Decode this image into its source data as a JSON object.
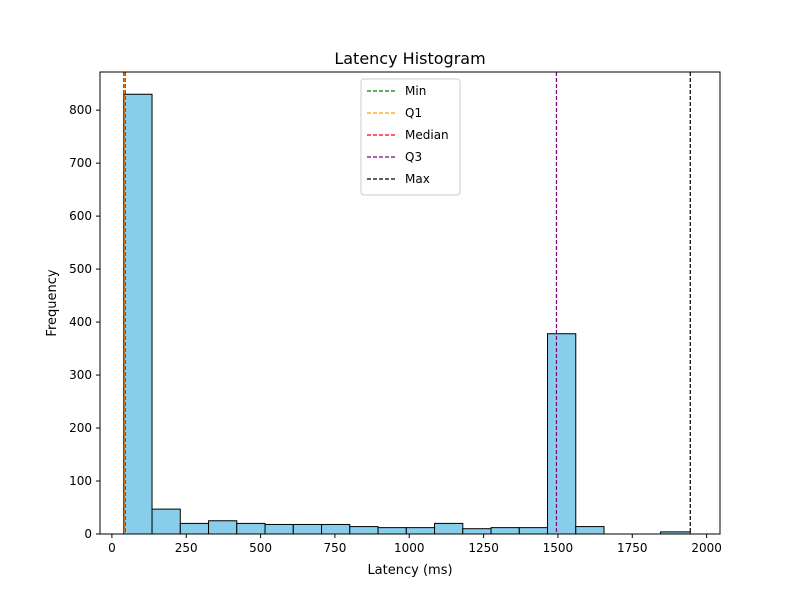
{
  "chart_data": {
    "type": "bar",
    "title": "Latency Histogram",
    "xlabel": "Latency (ms)",
    "ylabel": "Frequency",
    "xlim": [
      -40,
      2045
    ],
    "ylim": [
      0,
      872
    ],
    "xticks": [
      0,
      250,
      500,
      750,
      1000,
      1250,
      1500,
      1750,
      2000
    ],
    "yticks": [
      0,
      100,
      200,
      300,
      400,
      500,
      600,
      700,
      800
    ],
    "bin_edges": [
      40,
      135,
      230,
      325,
      420,
      515,
      610,
      705,
      800,
      895,
      990,
      1085,
      1180,
      1275,
      1370,
      1465,
      1560,
      1655,
      1750,
      1845,
      1945
    ],
    "counts": [
      830,
      47,
      20,
      25,
      20,
      18,
      18,
      18,
      14,
      12,
      12,
      20,
      10,
      12,
      12,
      378,
      14,
      0,
      0,
      4
    ],
    "bar_color": "#87CEEB",
    "edge_color": "#000000",
    "vlines": [
      {
        "name": "Min",
        "value": 40,
        "color": "#008000"
      },
      {
        "name": "Q1",
        "value": 43,
        "color": "#FFA500"
      },
      {
        "name": "Median",
        "value": 45,
        "color": "#FF0000"
      },
      {
        "name": "Q3",
        "value": 1495,
        "color": "#800080"
      },
      {
        "name": "Max",
        "value": 1945,
        "color": "#000000"
      }
    ],
    "legend": {
      "position": "top-center",
      "entries": [
        "Min",
        "Q1",
        "Median",
        "Q3",
        "Max"
      ]
    },
    "grid": false
  }
}
